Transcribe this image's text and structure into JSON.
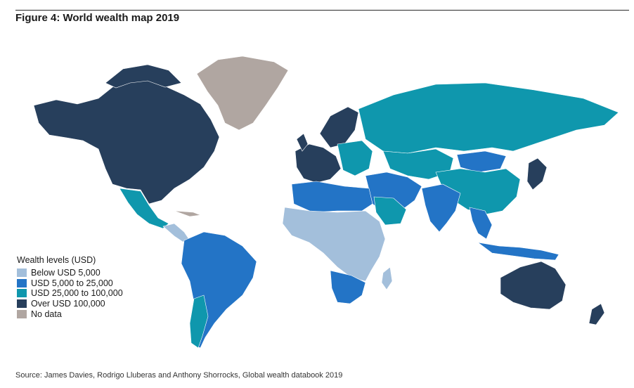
{
  "title": "Figure 4: World wealth map 2019",
  "legend": {
    "title": "Wealth levels (USD)",
    "items": [
      {
        "label": "Below USD 5,000",
        "color": "#a3bfdb"
      },
      {
        "label": "USD 5,000 to 25,000",
        "color": "#2374c6"
      },
      {
        "label": "USD 25,000 to 100,000",
        "color": "#0f97ad"
      },
      {
        "label": "Over USD 100,000",
        "color": "#273f5c"
      },
      {
        "label": "No data",
        "color": "#b0a6a1"
      }
    ]
  },
  "source": "Source: James Davies, Rodrigo Lluberas and Anthony Shorrocks, Global wealth databook 2019",
  "colors": {
    "below_5000": "#a3bfdb",
    "from_5000_to_25000": "#2374c6",
    "from_25000_to_100000": "#0f97ad",
    "over_100000": "#273f5c",
    "no_data": "#b0a6a1"
  }
}
